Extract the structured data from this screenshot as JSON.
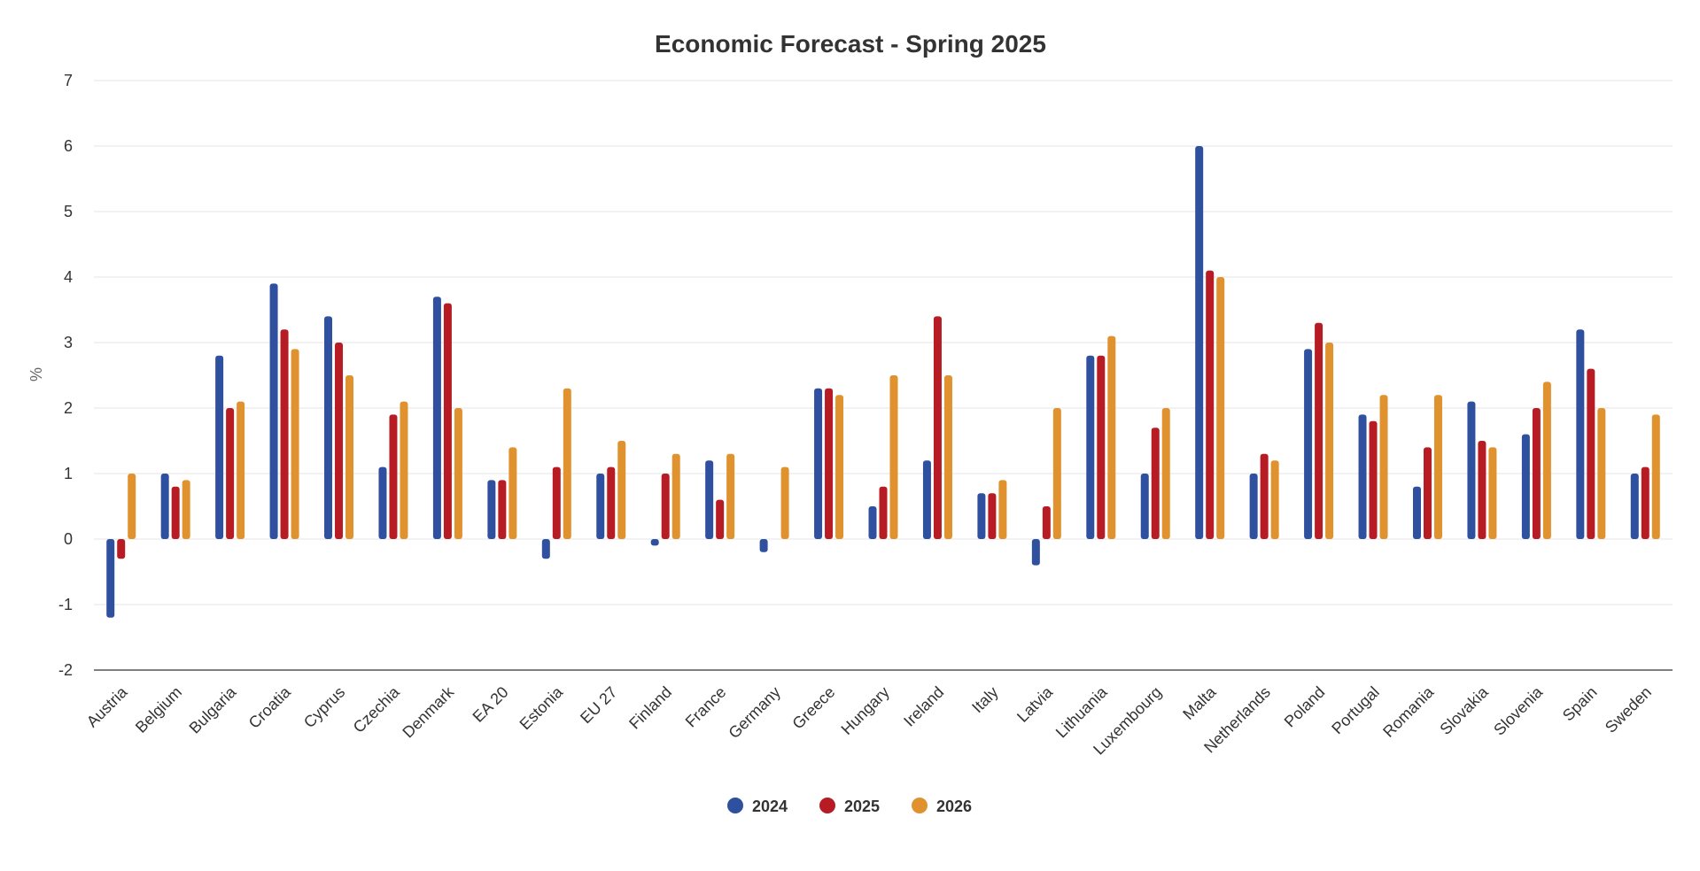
{
  "chart_data": {
    "type": "bar",
    "title": "Economic Forecast - Spring 2025",
    "xlabel": "",
    "ylabel": "%",
    "ylim": [
      -2,
      7
    ],
    "yticks": [
      "7",
      "6",
      "5",
      "4",
      "3",
      "2",
      "1",
      "0",
      "-1",
      "-2"
    ],
    "grid": true,
    "legend_position": "bottom",
    "categories": [
      "Austria",
      "Belgium",
      "Bulgaria",
      "Croatia",
      "Cyprus",
      "Czechia",
      "Denmark",
      "EA 20",
      "Estonia",
      "EU 27",
      "Finland",
      "France",
      "Germany",
      "Greece",
      "Hungary",
      "Ireland",
      "Italy",
      "Latvia",
      "Lithuania",
      "Luxembourg",
      "Malta",
      "Netherlands",
      "Poland",
      "Portugal",
      "Romania",
      "Slovakia",
      "Slovenia",
      "Spain",
      "Sweden"
    ],
    "series": [
      {
        "name": "2024",
        "color": "#2f4f9f",
        "values": [
          -1.2,
          1.0,
          2.8,
          3.9,
          3.4,
          1.1,
          3.7,
          0.9,
          -0.3,
          1.0,
          -0.1,
          1.2,
          -0.2,
          2.3,
          0.5,
          1.2,
          0.7,
          -0.4,
          2.8,
          1.0,
          6.0,
          1.0,
          2.9,
          1.9,
          0.8,
          2.1,
          1.6,
          3.2,
          1.0
        ]
      },
      {
        "name": "2025",
        "color": "#b71c24",
        "values": [
          -0.3,
          0.8,
          2.0,
          3.2,
          3.0,
          1.9,
          3.6,
          0.9,
          1.1,
          1.1,
          1.0,
          0.6,
          0.0,
          2.3,
          0.8,
          3.4,
          0.7,
          0.5,
          2.8,
          1.7,
          4.1,
          1.3,
          3.3,
          1.8,
          1.4,
          1.5,
          2.0,
          2.6,
          1.1
        ]
      },
      {
        "name": "2026",
        "color": "#e0922f",
        "values": [
          1.0,
          0.9,
          2.1,
          2.9,
          2.5,
          2.1,
          2.0,
          1.4,
          2.3,
          1.5,
          1.3,
          1.3,
          1.1,
          2.2,
          2.5,
          2.5,
          0.9,
          2.0,
          3.1,
          2.0,
          4.0,
          1.2,
          3.0,
          2.2,
          2.2,
          1.4,
          2.4,
          2.0,
          1.9
        ]
      }
    ]
  }
}
